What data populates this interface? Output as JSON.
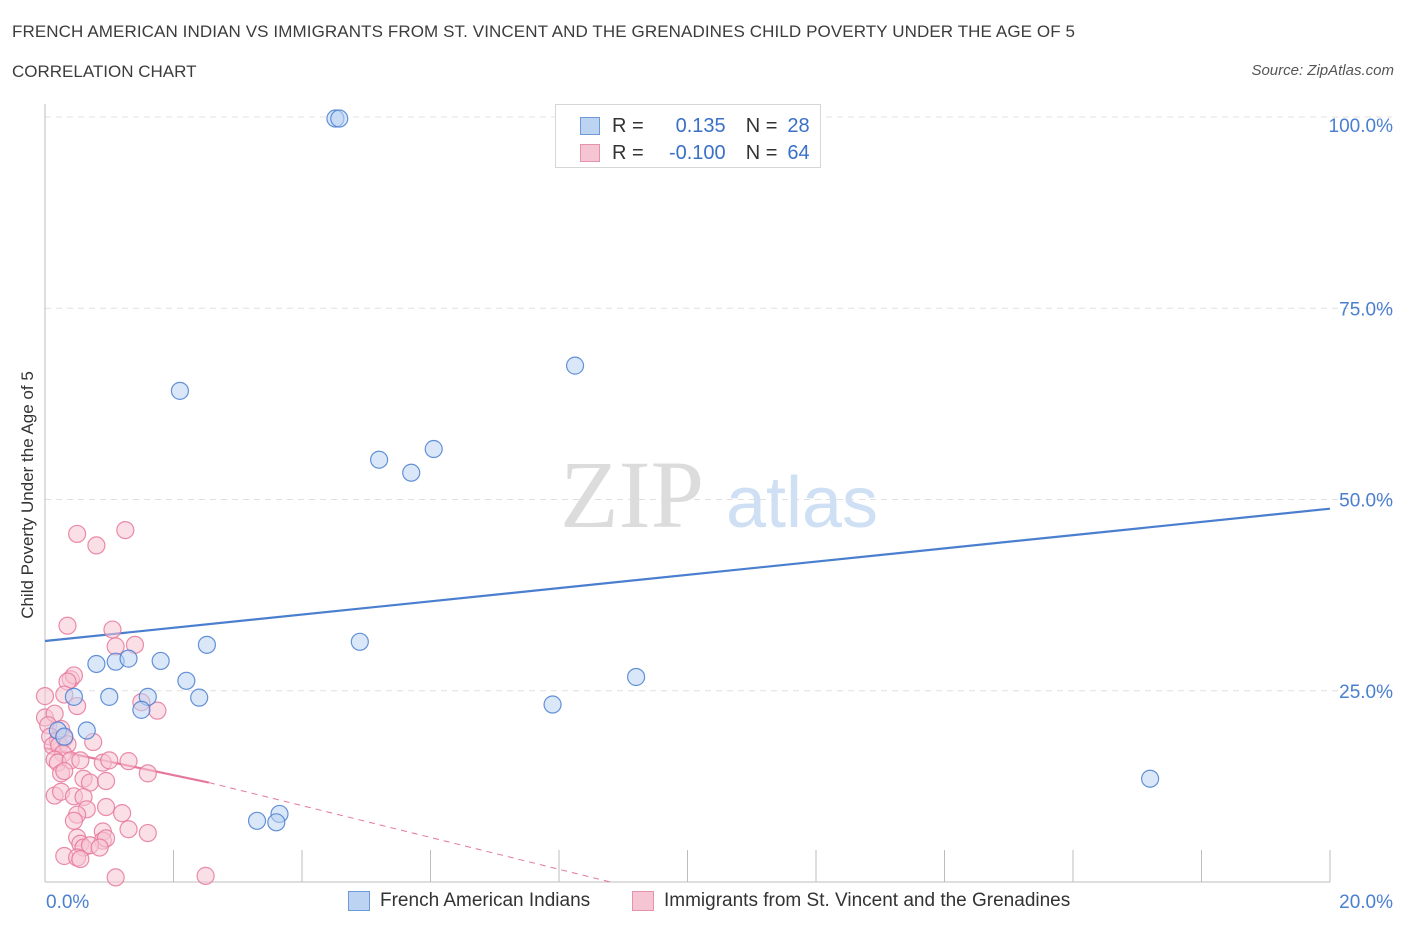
{
  "title": "FRENCH AMERICAN INDIAN VS IMMIGRANTS FROM ST. VINCENT AND THE GRENADINES CHILD POVERTY UNDER THE AGE OF 5",
  "subtitle": "CORRELATION CHART",
  "source": "Source: ZipAtlas.com",
  "watermark": {
    "zip": "ZIP",
    "atlas": "atlas"
  },
  "colors": {
    "blue": "#4a7fd0",
    "blue_fill": "#bcd3f2",
    "pink": "#e6789c",
    "pink_fill": "#f6c5d4",
    "axis_label": "#4a7fd0",
    "grid": "#e0e0e0"
  },
  "legend": {
    "row1": {
      "r_label": "R =",
      "r_value": "0.135",
      "n_label": "N =",
      "n_value": "28"
    },
    "row2": {
      "r_label": "R =",
      "r_value": "-0.100",
      "n_label": "N =",
      "n_value": "64"
    }
  },
  "bottom_legend": {
    "series1": "French American Indians",
    "series2": "Immigrants from St. Vincent and the Grenadines"
  },
  "chart_data": {
    "type": "scatter",
    "title": "FRENCH AMERICAN INDIAN VS IMMIGRANTS FROM ST. VINCENT AND THE GRENADINES CHILD POVERTY UNDER THE AGE OF 5",
    "xlabel": "",
    "ylabel": "Child Poverty Under the Age of 5",
    "xlim": [
      0,
      20
    ],
    "ylim": [
      0,
      100
    ],
    "x_tick_labels": [
      "0.0%",
      "20.0%"
    ],
    "y_tick_labels": [
      "25.0%",
      "50.0%",
      "75.0%",
      "100.0%"
    ],
    "y_ticks": [
      25,
      50,
      75,
      100
    ],
    "series": [
      {
        "name": "French American Indians",
        "color": "blue",
        "trend": {
          "x": [
            0,
            20
          ],
          "y": [
            31.5,
            48.8
          ],
          "style": "solid"
        },
        "points": [
          {
            "x": 4.52,
            "y": 99.8
          },
          {
            "x": 4.58,
            "y": 99.8
          },
          {
            "x": 2.1,
            "y": 64.2
          },
          {
            "x": 8.25,
            "y": 67.5
          },
          {
            "x": 5.2,
            "y": 55.2
          },
          {
            "x": 5.7,
            "y": 53.5
          },
          {
            "x": 6.05,
            "y": 56.6
          },
          {
            "x": 2.52,
            "y": 31.0
          },
          {
            "x": 4.9,
            "y": 31.4
          },
          {
            "x": 0.8,
            "y": 28.5
          },
          {
            "x": 1.1,
            "y": 28.8
          },
          {
            "x": 1.3,
            "y": 29.2
          },
          {
            "x": 1.8,
            "y": 28.9
          },
          {
            "x": 2.2,
            "y": 26.3
          },
          {
            "x": 9.2,
            "y": 26.8
          },
          {
            "x": 0.45,
            "y": 24.2
          },
          {
            "x": 1.0,
            "y": 24.2
          },
          {
            "x": 1.6,
            "y": 24.2
          },
          {
            "x": 2.4,
            "y": 24.1
          },
          {
            "x": 1.5,
            "y": 22.5
          },
          {
            "x": 7.9,
            "y": 23.2
          },
          {
            "x": 0.2,
            "y": 19.8
          },
          {
            "x": 0.65,
            "y": 19.8
          },
          {
            "x": 0.3,
            "y": 19.0
          },
          {
            "x": 17.2,
            "y": 13.5
          },
          {
            "x": 3.65,
            "y": 8.9
          },
          {
            "x": 3.3,
            "y": 8.0
          },
          {
            "x": 3.6,
            "y": 7.8
          }
        ]
      },
      {
        "name": "Immigrants from St. Vincent and the Grenadines",
        "color": "pink",
        "trend": {
          "x": [
            0,
            2.55,
            8.8
          ],
          "y": [
            17.5,
            13.0,
            0.0
          ],
          "style": "solid-then-dashed"
        },
        "points": [
          {
            "x": 1.25,
            "y": 46.0
          },
          {
            "x": 0.5,
            "y": 45.5
          },
          {
            "x": 0.8,
            "y": 44.0
          },
          {
            "x": 0.35,
            "y": 33.5
          },
          {
            "x": 1.05,
            "y": 33.0
          },
          {
            "x": 1.1,
            "y": 30.8
          },
          {
            "x": 1.4,
            "y": 31.0
          },
          {
            "x": 0.4,
            "y": 26.5
          },
          {
            "x": 0.45,
            "y": 27.0
          },
          {
            "x": 0.35,
            "y": 26.2
          },
          {
            "x": 0.0,
            "y": 24.3
          },
          {
            "x": 0.3,
            "y": 24.5
          },
          {
            "x": 0.5,
            "y": 23.0
          },
          {
            "x": 1.5,
            "y": 23.5
          },
          {
            "x": 1.75,
            "y": 22.4
          },
          {
            "x": 0.0,
            "y": 21.5
          },
          {
            "x": 0.15,
            "y": 22.0
          },
          {
            "x": 0.05,
            "y": 20.5
          },
          {
            "x": 0.25,
            "y": 20.0
          },
          {
            "x": 0.08,
            "y": 19.0
          },
          {
            "x": 0.2,
            "y": 18.5
          },
          {
            "x": 0.3,
            "y": 18.8
          },
          {
            "x": 0.12,
            "y": 17.8
          },
          {
            "x": 0.22,
            "y": 17.9
          },
          {
            "x": 0.35,
            "y": 18.0
          },
          {
            "x": 0.75,
            "y": 18.3
          },
          {
            "x": 0.28,
            "y": 16.8
          },
          {
            "x": 0.15,
            "y": 16.0
          },
          {
            "x": 0.2,
            "y": 15.6
          },
          {
            "x": 0.4,
            "y": 15.9
          },
          {
            "x": 0.55,
            "y": 15.9
          },
          {
            "x": 0.9,
            "y": 15.6
          },
          {
            "x": 1.0,
            "y": 15.9
          },
          {
            "x": 1.3,
            "y": 15.8
          },
          {
            "x": 0.25,
            "y": 14.2
          },
          {
            "x": 0.3,
            "y": 14.5
          },
          {
            "x": 1.6,
            "y": 14.2
          },
          {
            "x": 0.6,
            "y": 13.5
          },
          {
            "x": 0.7,
            "y": 13.0
          },
          {
            "x": 0.95,
            "y": 13.2
          },
          {
            "x": 0.15,
            "y": 11.3
          },
          {
            "x": 0.25,
            "y": 11.8
          },
          {
            "x": 0.45,
            "y": 11.2
          },
          {
            "x": 0.6,
            "y": 11.1
          },
          {
            "x": 0.65,
            "y": 9.5
          },
          {
            "x": 0.95,
            "y": 9.8
          },
          {
            "x": 1.2,
            "y": 9.0
          },
          {
            "x": 0.5,
            "y": 8.8
          },
          {
            "x": 0.45,
            "y": 8.0
          },
          {
            "x": 0.9,
            "y": 6.6
          },
          {
            "x": 1.3,
            "y": 6.9
          },
          {
            "x": 1.6,
            "y": 6.4
          },
          {
            "x": 0.5,
            "y": 5.8
          },
          {
            "x": 0.9,
            "y": 5.4
          },
          {
            "x": 0.95,
            "y": 5.7
          },
          {
            "x": 0.55,
            "y": 5.0
          },
          {
            "x": 0.6,
            "y": 4.5
          },
          {
            "x": 0.7,
            "y": 4.8
          },
          {
            "x": 0.85,
            "y": 4.5
          },
          {
            "x": 0.3,
            "y": 3.4
          },
          {
            "x": 0.5,
            "y": 3.2
          },
          {
            "x": 0.55,
            "y": 3.0
          },
          {
            "x": 1.1,
            "y": 0.6
          },
          {
            "x": 2.5,
            "y": 0.8
          }
        ]
      }
    ]
  }
}
